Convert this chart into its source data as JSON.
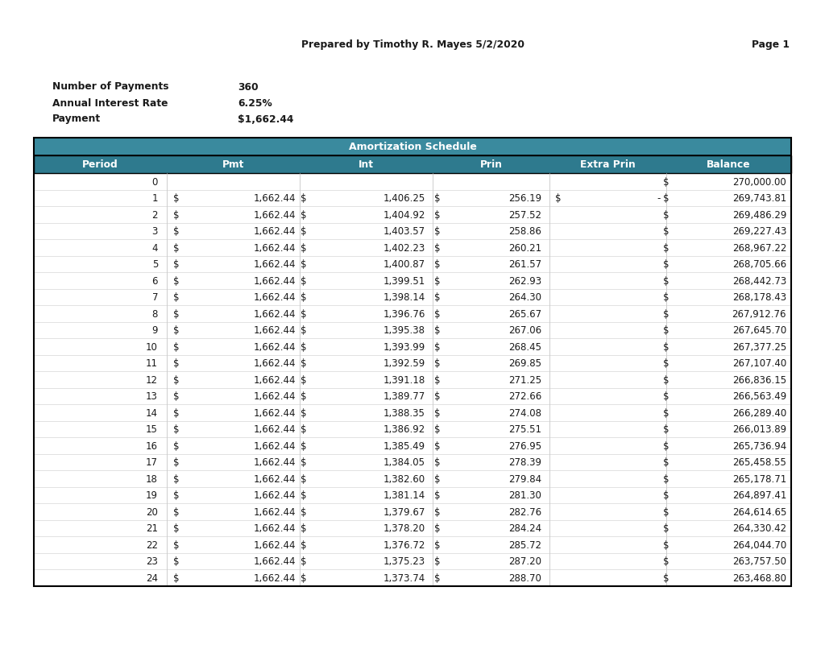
{
  "header_text": "Prepared by Timothy R. Mayes 5/2/2020",
  "page_text": "Page 1",
  "info_labels": [
    "Number of Payments",
    "Annual Interest Rate",
    "Payment"
  ],
  "info_values": [
    "360",
    "6.25%",
    "$1,662.44"
  ],
  "section_title": "Amortization Schedule",
  "col_headers": [
    "Period",
    "Pmt",
    "Int",
    "Prin",
    "Extra Prin",
    "Balance"
  ],
  "teal_header_color": "#3a8a9e",
  "teal_dark_color": "#2e7a8e",
  "background_color": "#ffffff",
  "header_text_color": "#ffffff",
  "body_text_color": "#1a1a1a",
  "rows": [
    {
      "period": "0",
      "pmt_s": "",
      "pmt": "",
      "int_s": "",
      "int": "",
      "prin_s": "",
      "prin": "",
      "ep_s": "",
      "ep": "",
      "bal_s": "$",
      "bal": "270,000.00"
    },
    {
      "period": "1",
      "pmt_s": "$",
      "pmt": "1,662.44",
      "int_s": "$",
      "int": "1,406.25",
      "prin_s": "$",
      "prin": "256.19",
      "ep_s": "$",
      "ep": "-",
      "bal_s": "$",
      "bal": "269,743.81"
    },
    {
      "period": "2",
      "pmt_s": "$",
      "pmt": "1,662.44",
      "int_s": "$",
      "int": "1,404.92",
      "prin_s": "$",
      "prin": "257.52",
      "ep_s": "",
      "ep": "",
      "bal_s": "$",
      "bal": "269,486.29"
    },
    {
      "period": "3",
      "pmt_s": "$",
      "pmt": "1,662.44",
      "int_s": "$",
      "int": "1,403.57",
      "prin_s": "$",
      "prin": "258.86",
      "ep_s": "",
      "ep": "",
      "bal_s": "$",
      "bal": "269,227.43"
    },
    {
      "period": "4",
      "pmt_s": "$",
      "pmt": "1,662.44",
      "int_s": "$",
      "int": "1,402.23",
      "prin_s": "$",
      "prin": "260.21",
      "ep_s": "",
      "ep": "",
      "bal_s": "$",
      "bal": "268,967.22"
    },
    {
      "period": "5",
      "pmt_s": "$",
      "pmt": "1,662.44",
      "int_s": "$",
      "int": "1,400.87",
      "prin_s": "$",
      "prin": "261.57",
      "ep_s": "",
      "ep": "",
      "bal_s": "$",
      "bal": "268,705.66"
    },
    {
      "period": "6",
      "pmt_s": "$",
      "pmt": "1,662.44",
      "int_s": "$",
      "int": "1,399.51",
      "prin_s": "$",
      "prin": "262.93",
      "ep_s": "",
      "ep": "",
      "bal_s": "$",
      "bal": "268,442.73"
    },
    {
      "period": "7",
      "pmt_s": "$",
      "pmt": "1,662.44",
      "int_s": "$",
      "int": "1,398.14",
      "prin_s": "$",
      "prin": "264.30",
      "ep_s": "",
      "ep": "",
      "bal_s": "$",
      "bal": "268,178.43"
    },
    {
      "period": "8",
      "pmt_s": "$",
      "pmt": "1,662.44",
      "int_s": "$",
      "int": "1,396.76",
      "prin_s": "$",
      "prin": "265.67",
      "ep_s": "",
      "ep": "",
      "bal_s": "$",
      "bal": "267,912.76"
    },
    {
      "period": "9",
      "pmt_s": "$",
      "pmt": "1,662.44",
      "int_s": "$",
      "int": "1,395.38",
      "prin_s": "$",
      "prin": "267.06",
      "ep_s": "",
      "ep": "",
      "bal_s": "$",
      "bal": "267,645.70"
    },
    {
      "period": "10",
      "pmt_s": "$",
      "pmt": "1,662.44",
      "int_s": "$",
      "int": "1,393.99",
      "prin_s": "$",
      "prin": "268.45",
      "ep_s": "",
      "ep": "",
      "bal_s": "$",
      "bal": "267,377.25"
    },
    {
      "period": "11",
      "pmt_s": "$",
      "pmt": "1,662.44",
      "int_s": "$",
      "int": "1,392.59",
      "prin_s": "$",
      "prin": "269.85",
      "ep_s": "",
      "ep": "",
      "bal_s": "$",
      "bal": "267,107.40"
    },
    {
      "period": "12",
      "pmt_s": "$",
      "pmt": "1,662.44",
      "int_s": "$",
      "int": "1,391.18",
      "prin_s": "$",
      "prin": "271.25",
      "ep_s": "",
      "ep": "",
      "bal_s": "$",
      "bal": "266,836.15"
    },
    {
      "period": "13",
      "pmt_s": "$",
      "pmt": "1,662.44",
      "int_s": "$",
      "int": "1,389.77",
      "prin_s": "$",
      "prin": "272.66",
      "ep_s": "",
      "ep": "",
      "bal_s": "$",
      "bal": "266,563.49"
    },
    {
      "period": "14",
      "pmt_s": "$",
      "pmt": "1,662.44",
      "int_s": "$",
      "int": "1,388.35",
      "prin_s": "$",
      "prin": "274.08",
      "ep_s": "",
      "ep": "",
      "bal_s": "$",
      "bal": "266,289.40"
    },
    {
      "period": "15",
      "pmt_s": "$",
      "pmt": "1,662.44",
      "int_s": "$",
      "int": "1,386.92",
      "prin_s": "$",
      "prin": "275.51",
      "ep_s": "",
      "ep": "",
      "bal_s": "$",
      "bal": "266,013.89"
    },
    {
      "period": "16",
      "pmt_s": "$",
      "pmt": "1,662.44",
      "int_s": "$",
      "int": "1,385.49",
      "prin_s": "$",
      "prin": "276.95",
      "ep_s": "",
      "ep": "",
      "bal_s": "$",
      "bal": "265,736.94"
    },
    {
      "period": "17",
      "pmt_s": "$",
      "pmt": "1,662.44",
      "int_s": "$",
      "int": "1,384.05",
      "prin_s": "$",
      "prin": "278.39",
      "ep_s": "",
      "ep": "",
      "bal_s": "$",
      "bal": "265,458.55"
    },
    {
      "period": "18",
      "pmt_s": "$",
      "pmt": "1,662.44",
      "int_s": "$",
      "int": "1,382.60",
      "prin_s": "$",
      "prin": "279.84",
      "ep_s": "",
      "ep": "",
      "bal_s": "$",
      "bal": "265,178.71"
    },
    {
      "period": "19",
      "pmt_s": "$",
      "pmt": "1,662.44",
      "int_s": "$",
      "int": "1,381.14",
      "prin_s": "$",
      "prin": "281.30",
      "ep_s": "",
      "ep": "",
      "bal_s": "$",
      "bal": "264,897.41"
    },
    {
      "period": "20",
      "pmt_s": "$",
      "pmt": "1,662.44",
      "int_s": "$",
      "int": "1,379.67",
      "prin_s": "$",
      "prin": "282.76",
      "ep_s": "",
      "ep": "",
      "bal_s": "$",
      "bal": "264,614.65"
    },
    {
      "period": "21",
      "pmt_s": "$",
      "pmt": "1,662.44",
      "int_s": "$",
      "int": "1,378.20",
      "prin_s": "$",
      "prin": "284.24",
      "ep_s": "",
      "ep": "",
      "bal_s": "$",
      "bal": "264,330.42"
    },
    {
      "period": "22",
      "pmt_s": "$",
      "pmt": "1,662.44",
      "int_s": "$",
      "int": "1,376.72",
      "prin_s": "$",
      "prin": "285.72",
      "ep_s": "",
      "ep": "",
      "bal_s": "$",
      "bal": "264,044.70"
    },
    {
      "period": "23",
      "pmt_s": "$",
      "pmt": "1,662.44",
      "int_s": "$",
      "int": "1,375.23",
      "prin_s": "$",
      "prin": "287.20",
      "ep_s": "",
      "ep": "",
      "bal_s": "$",
      "bal": "263,757.50"
    },
    {
      "period": "24",
      "pmt_s": "$",
      "pmt": "1,662.44",
      "int_s": "$",
      "int": "1,373.74",
      "prin_s": "$",
      "prin": "288.70",
      "ep_s": "",
      "ep": "",
      "bal_s": "$",
      "bal": "263,468.80"
    }
  ]
}
